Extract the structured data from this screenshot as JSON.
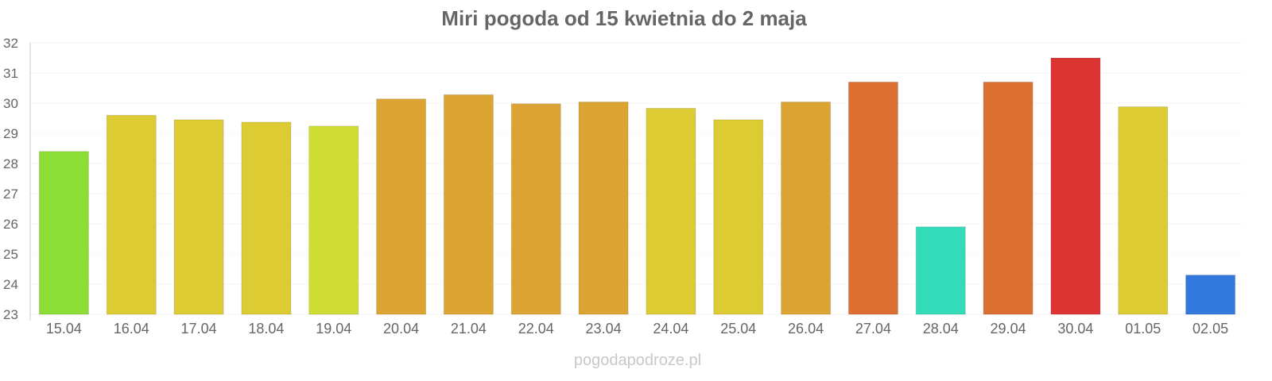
{
  "chart_data": {
    "type": "bar",
    "title": "Miri pogoda od 15 kwietnia do 2 maja",
    "xlabel": "",
    "ylabel": "",
    "ylim": [
      23,
      32
    ],
    "yticks": [
      23,
      24,
      25,
      26,
      27,
      28,
      29,
      30,
      31,
      32
    ],
    "grid": true,
    "categories": [
      "15.04",
      "16.04",
      "17.04",
      "18.04",
      "19.04",
      "20.04",
      "21.04",
      "22.04",
      "23.04",
      "24.04",
      "25.04",
      "26.04",
      "27.04",
      "28.04",
      "29.04",
      "30.04",
      "01.05",
      "02.05"
    ],
    "values": [
      28.4,
      29.6,
      29.45,
      29.37,
      29.24,
      30.14,
      30.28,
      29.98,
      30.04,
      29.83,
      29.45,
      30.04,
      30.7,
      25.9,
      30.7,
      31.5,
      29.88,
      24.3
    ],
    "colors": [
      "#8ddd37",
      "#dccb33",
      "#dccb33",
      "#dccb33",
      "#d0dd34",
      "#dca533",
      "#dca533",
      "#dca533",
      "#dca533",
      "#dccb33",
      "#dccb33",
      "#dca533",
      "#dc7033",
      "#33dcb8",
      "#dc7033",
      "#dc3333",
      "#dccb33",
      "#3378dc"
    ],
    "credit": "pogodapodroze.pl"
  }
}
